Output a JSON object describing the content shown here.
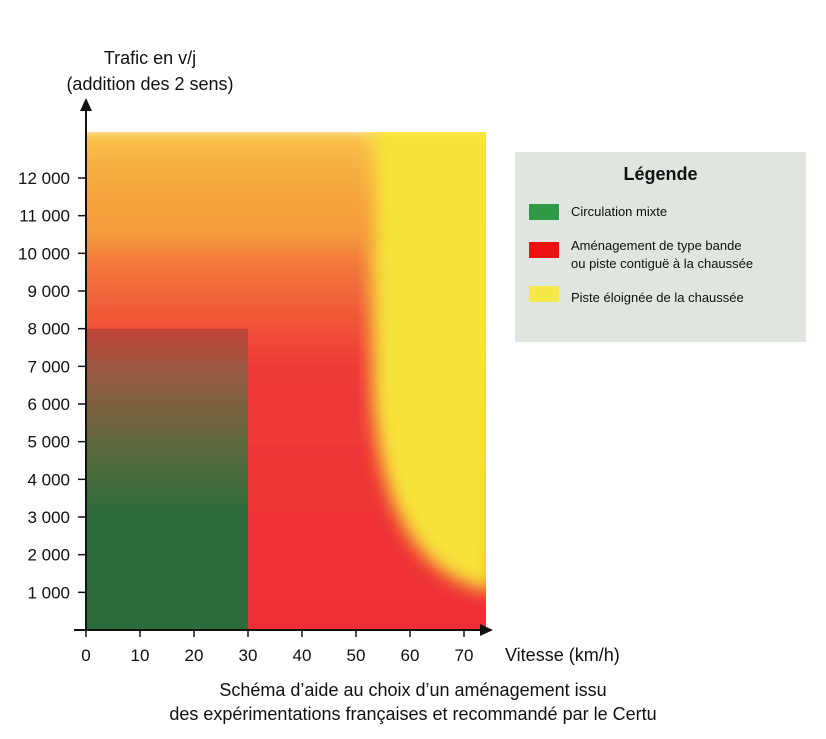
{
  "chart_data": {
    "type": "heatmap",
    "title": "",
    "ylabel_lines": [
      "Trafic en v/j",
      "(addition des 2 sens)"
    ],
    "xlabel": "Vitesse (km/h)",
    "x_ticks": [
      "0",
      "10",
      "20",
      "30",
      "40",
      "50",
      "60",
      "70"
    ],
    "y_ticks": [
      "1 000",
      "2 000",
      "3 000",
      "4 000",
      "5 000",
      "6 000",
      "7 000",
      "8 000",
      "9 000",
      "10 000",
      "11 000",
      "12 000"
    ],
    "xlim": [
      0,
      72
    ],
    "ylim": [
      0,
      12700
    ],
    "zones": [
      {
        "name": "Circulation mixte",
        "color": "#2f7a3d",
        "x_range": [
          0,
          30
        ],
        "y_range": [
          0,
          8000
        ]
      },
      {
        "name": "Aménagement de type bande ou piste contiguë à la chaussée",
        "color": "#ee2a2a",
        "x_range": [
          0,
          72
        ],
        "y_range": [
          0,
          12700
        ]
      },
      {
        "name": "Piste éloignée de la chaussée",
        "color": "#f7e43a",
        "x_range": [
          53,
          72
        ],
        "y_range": [
          1000,
          12700
        ]
      }
    ]
  },
  "legend": {
    "title": "Légende",
    "items": [
      {
        "label_lines": [
          "Circulation mixte"
        ],
        "color": "#2f9a45"
      },
      {
        "label_lines": [
          "Aménagement de type bande",
          "ou piste contiguë à la chaussée"
        ],
        "color": "#ee1111"
      },
      {
        "label_lines": [
          "Piste éloignée de la chaussée"
        ],
        "color": "#f7e84a"
      }
    ]
  },
  "caption_lines": [
    "Schéma d’aide au choix d’un aménagement issu",
    "des expérimentations françaises et recommandé par le Certu"
  ]
}
